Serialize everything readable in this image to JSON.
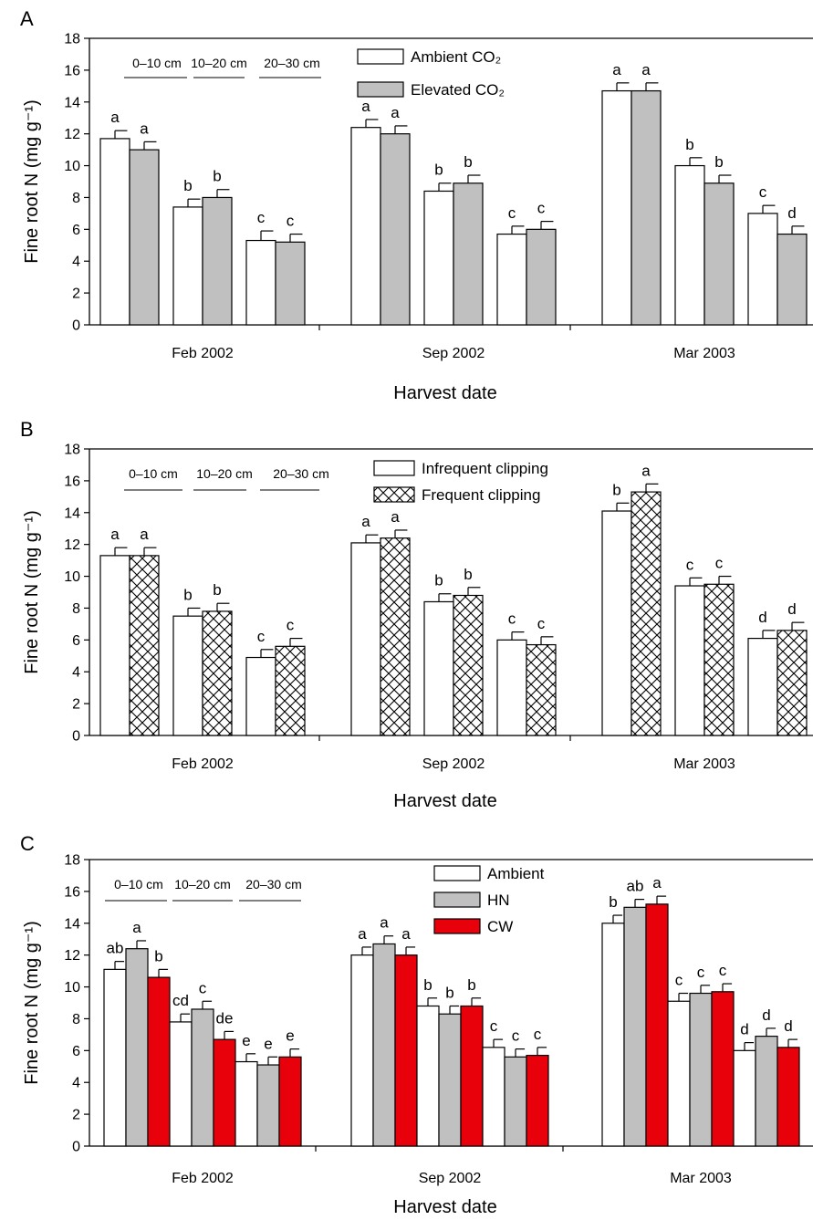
{
  "depth_labels": [
    "0–10 cm",
    "10–20 cm",
    "20–30 cm"
  ],
  "colors": {
    "ambient": "#ffffff",
    "elevated": "#c0c0c0",
    "hn": "#c0c0c0",
    "cw": "#e8000b",
    "outline": "#000000"
  },
  "chart_data": [
    {
      "panel_label": "A",
      "type": "bar",
      "ylabel": "Fine root N (mg g⁻¹)",
      "xlabel": "Harvest date",
      "ylim": [
        0,
        18
      ],
      "yticks": [
        0,
        2,
        4,
        6,
        8,
        10,
        12,
        14,
        16,
        18
      ],
      "categories": [
        "Feb 2002",
        "Sep 2002",
        "Mar 2003"
      ],
      "depths": [
        "0–10 cm",
        "10–20 cm",
        "20–30 cm"
      ],
      "series": [
        {
          "name": "Ambient CO₂",
          "fill": "ambient",
          "values": [
            [
              11.7,
              7.4,
              5.3
            ],
            [
              12.4,
              8.4,
              5.7
            ],
            [
              14.7,
              10.0,
              7.0
            ]
          ],
          "errors": [
            [
              0.5,
              0.5,
              0.6
            ],
            [
              0.5,
              0.5,
              0.5
            ],
            [
              0.5,
              0.5,
              0.5
            ]
          ],
          "letters": [
            [
              "a",
              "b",
              "c"
            ],
            [
              "a",
              "b",
              "c"
            ],
            [
              "a",
              "b",
              "c"
            ]
          ]
        },
        {
          "name": "Elevated CO₂",
          "fill": "elevated",
          "values": [
            [
              11.0,
              8.0,
              5.2
            ],
            [
              12.0,
              8.9,
              6.0
            ],
            [
              14.7,
              8.9,
              5.7
            ]
          ],
          "errors": [
            [
              0.5,
              0.5,
              0.5
            ],
            [
              0.5,
              0.5,
              0.5
            ],
            [
              0.5,
              0.5,
              0.5
            ]
          ],
          "letters": [
            [
              "a",
              "b",
              "c"
            ],
            [
              "a",
              "b",
              "c"
            ],
            [
              "a",
              "b",
              "d"
            ]
          ]
        }
      ],
      "legend": "top-center"
    },
    {
      "panel_label": "B",
      "type": "bar",
      "ylabel": "Fine root N (mg g⁻¹)",
      "xlabel": "Harvest date",
      "ylim": [
        0,
        18
      ],
      "yticks": [
        0,
        2,
        4,
        6,
        8,
        10,
        12,
        14,
        16,
        18
      ],
      "categories": [
        "Feb 2002",
        "Sep 2002",
        "Mar 2003"
      ],
      "depths": [
        "0–10 cm",
        "10–20 cm",
        "20–30 cm"
      ],
      "series": [
        {
          "name": "Infrequent clipping",
          "fill": "ambient",
          "values": [
            [
              11.3,
              7.5,
              4.9
            ],
            [
              12.1,
              8.4,
              6.0
            ],
            [
              14.1,
              9.4,
              6.1
            ]
          ],
          "errors": [
            [
              0.5,
              0.5,
              0.5
            ],
            [
              0.5,
              0.5,
              0.5
            ],
            [
              0.5,
              0.5,
              0.5
            ]
          ],
          "letters": [
            [
              "a",
              "b",
              "c"
            ],
            [
              "a",
              "b",
              "c"
            ],
            [
              "b",
              "c",
              "d"
            ]
          ]
        },
        {
          "name": "Frequent clipping",
          "fill": "hatch",
          "values": [
            [
              11.3,
              7.8,
              5.6
            ],
            [
              12.4,
              8.8,
              5.7
            ],
            [
              15.3,
              9.5,
              6.6
            ]
          ],
          "errors": [
            [
              0.5,
              0.5,
              0.5
            ],
            [
              0.5,
              0.5,
              0.5
            ],
            [
              0.5,
              0.5,
              0.5
            ]
          ],
          "letters": [
            [
              "a",
              "b",
              "c"
            ],
            [
              "a",
              "b",
              "c"
            ],
            [
              "a",
              "c",
              "d"
            ]
          ]
        }
      ],
      "legend": "top-center"
    },
    {
      "panel_label": "C",
      "type": "bar",
      "ylabel": "Fine root N (mg g⁻¹)",
      "xlabel": "Harvest date",
      "ylim": [
        0,
        18
      ],
      "yticks": [
        0,
        2,
        4,
        6,
        8,
        10,
        12,
        14,
        16,
        18
      ],
      "categories": [
        "Feb 2002",
        "Sep 2002",
        "Mar 2003"
      ],
      "depths": [
        "0–10 cm",
        "10–20 cm",
        "20–30 cm"
      ],
      "series": [
        {
          "name": "Ambient",
          "fill": "ambient",
          "values": [
            [
              11.1,
              7.8,
              5.3
            ],
            [
              12.0,
              8.8,
              6.2
            ],
            [
              14.0,
              9.1,
              6.0
            ]
          ],
          "errors": [
            [
              0.5,
              0.5,
              0.5
            ],
            [
              0.5,
              0.5,
              0.5
            ],
            [
              0.5,
              0.5,
              0.5
            ]
          ],
          "letters": [
            [
              "ab",
              "cd",
              "e"
            ],
            [
              "a",
              "b",
              "c"
            ],
            [
              "b",
              "c",
              "d"
            ]
          ]
        },
        {
          "name": "HN",
          "fill": "hn",
          "values": [
            [
              12.4,
              8.6,
              5.1
            ],
            [
              12.7,
              8.3,
              5.6
            ],
            [
              15.0,
              9.6,
              6.9
            ]
          ],
          "errors": [
            [
              0.5,
              0.5,
              0.5
            ],
            [
              0.5,
              0.5,
              0.5
            ],
            [
              0.5,
              0.5,
              0.5
            ]
          ],
          "letters": [
            [
              "a",
              "c",
              "e"
            ],
            [
              "a",
              "b",
              "c"
            ],
            [
              "ab",
              "c",
              "d"
            ]
          ]
        },
        {
          "name": "CW",
          "fill": "cw",
          "values": [
            [
              10.6,
              6.7,
              5.6
            ],
            [
              12.0,
              8.8,
              5.7
            ],
            [
              15.2,
              9.7,
              6.2
            ]
          ],
          "errors": [
            [
              0.5,
              0.5,
              0.5
            ],
            [
              0.5,
              0.5,
              0.5
            ],
            [
              0.5,
              0.5,
              0.5
            ]
          ],
          "letters": [
            [
              "b",
              "de",
              "e"
            ],
            [
              "a",
              "b",
              "c"
            ],
            [
              "a",
              "c",
              "d"
            ]
          ]
        }
      ],
      "legend": "top-center"
    }
  ]
}
